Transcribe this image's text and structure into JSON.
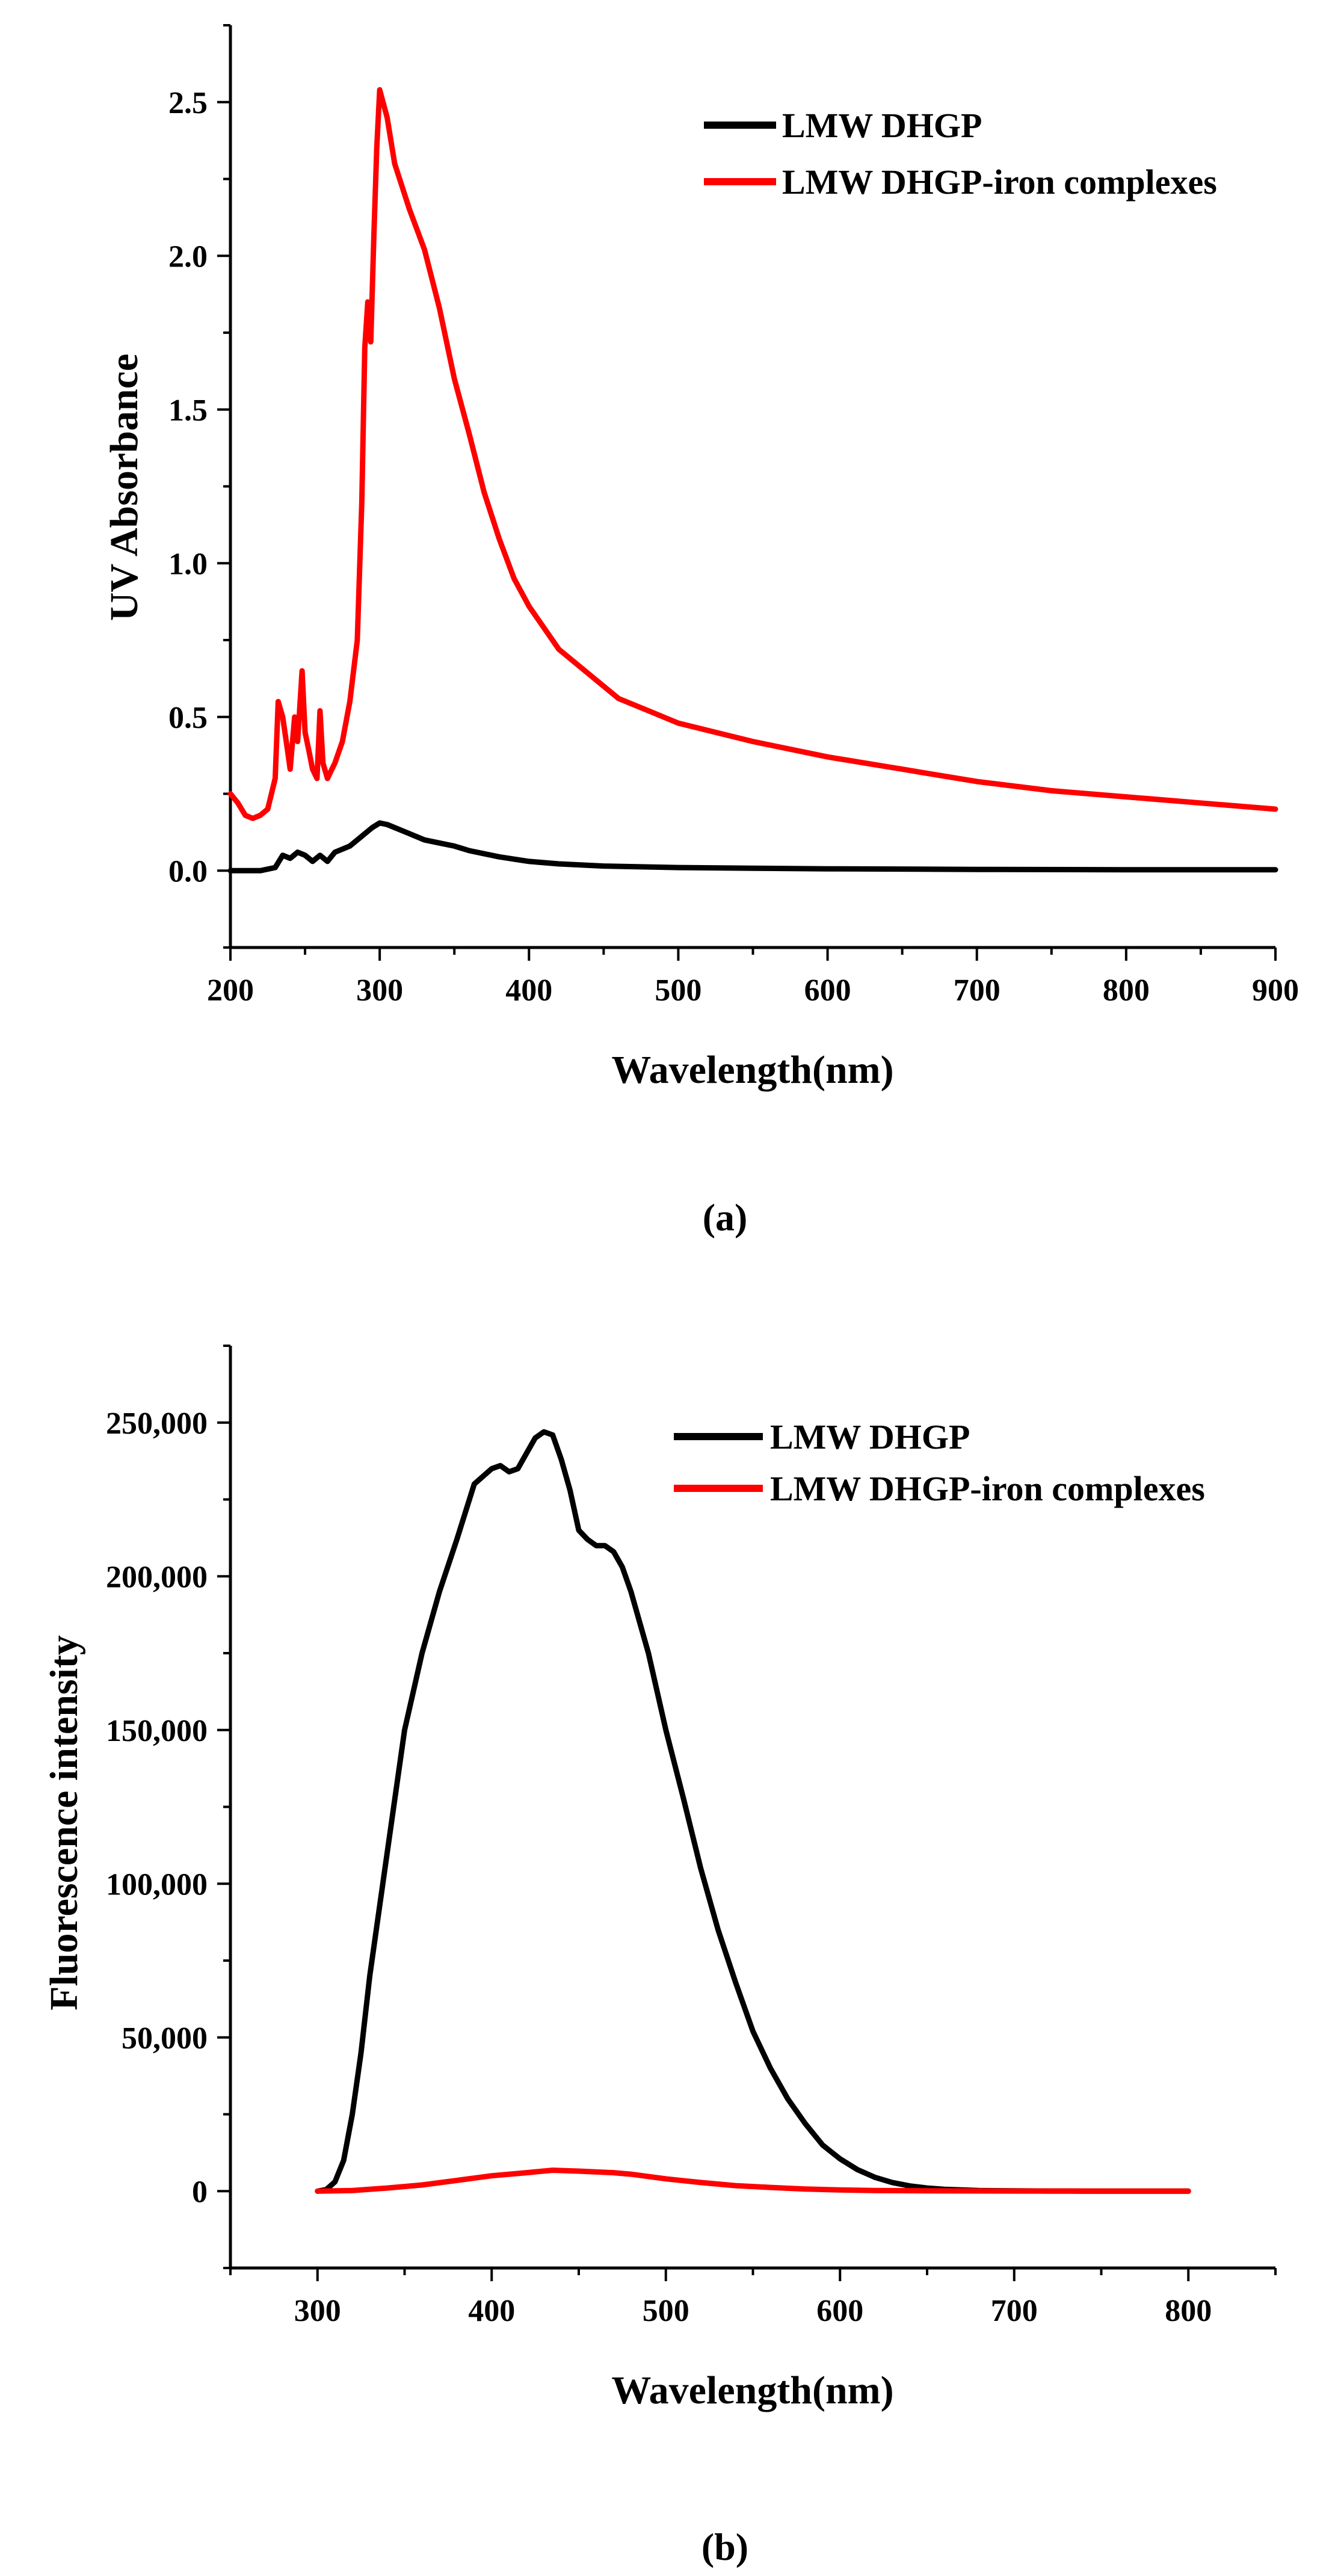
{
  "chart_data": [
    {
      "panel_label": "(a)",
      "type": "line",
      "xlabel": "Wavelength(nm)",
      "ylabel": "UV Absorbance",
      "xlim": [
        200,
        900
      ],
      "ylim": [
        -0.25,
        2.75
      ],
      "xticks": [
        200,
        300,
        400,
        500,
        600,
        700,
        800,
        900
      ],
      "xtick_labels": [
        "200",
        "300",
        "400",
        "500",
        "600",
        "700",
        "800",
        "900"
      ],
      "yticks": [
        0.0,
        0.5,
        1.0,
        1.5,
        2.0,
        2.5
      ],
      "ytick_labels": [
        "0.0",
        "0.5",
        "1.0",
        "1.5",
        "2.0",
        "2.5"
      ],
      "legend_position": "top-right",
      "series": [
        {
          "name": "LMW DHGP",
          "color": "#000000",
          "x": [
            200,
            210,
            220,
            230,
            235,
            240,
            245,
            250,
            255,
            260,
            265,
            270,
            275,
            280,
            285,
            290,
            295,
            300,
            305,
            310,
            320,
            330,
            340,
            350,
            360,
            380,
            400,
            420,
            450,
            500,
            550,
            600,
            700,
            800,
            900
          ],
          "y": [
            0.0,
            0.0,
            0.0,
            0.01,
            0.05,
            0.04,
            0.06,
            0.05,
            0.03,
            0.05,
            0.03,
            0.06,
            0.07,
            0.08,
            0.1,
            0.12,
            0.14,
            0.155,
            0.15,
            0.14,
            0.12,
            0.1,
            0.09,
            0.08,
            0.065,
            0.045,
            0.03,
            0.022,
            0.015,
            0.01,
            0.008,
            0.006,
            0.004,
            0.003,
            0.003
          ]
        },
        {
          "name": "LMW DHGP-iron complexes",
          "color": "#ff0000",
          "x": [
            200,
            205,
            210,
            215,
            220,
            225,
            230,
            232,
            235,
            238,
            240,
            243,
            245,
            248,
            250,
            253,
            255,
            258,
            260,
            262,
            265,
            268,
            270,
            275,
            280,
            285,
            288,
            290,
            292,
            294,
            296,
            298,
            300,
            305,
            310,
            320,
            330,
            340,
            350,
            360,
            370,
            380,
            390,
            400,
            420,
            440,
            460,
            480,
            500,
            550,
            600,
            650,
            700,
            750,
            800,
            850,
            900
          ],
          "y": [
            0.25,
            0.22,
            0.18,
            0.17,
            0.18,
            0.2,
            0.3,
            0.55,
            0.5,
            0.4,
            0.33,
            0.5,
            0.42,
            0.65,
            0.45,
            0.38,
            0.33,
            0.3,
            0.52,
            0.35,
            0.3,
            0.33,
            0.35,
            0.42,
            0.55,
            0.75,
            1.2,
            1.7,
            1.85,
            1.72,
            2.05,
            2.35,
            2.54,
            2.45,
            2.3,
            2.15,
            2.02,
            1.83,
            1.6,
            1.42,
            1.23,
            1.08,
            0.95,
            0.86,
            0.72,
            0.64,
            0.56,
            0.52,
            0.48,
            0.42,
            0.37,
            0.33,
            0.29,
            0.26,
            0.24,
            0.22,
            0.2
          ]
        }
      ]
    },
    {
      "panel_label": "(b)",
      "type": "line",
      "xlabel": "Wavelength(nm)",
      "ylabel": "Fluorescence intensity",
      "xlim": [
        250,
        850
      ],
      "ylim": [
        -25000,
        275000
      ],
      "xticks": [
        300,
        400,
        500,
        600,
        700,
        800
      ],
      "xtick_labels": [
        "300",
        "400",
        "500",
        "600",
        "700",
        "800"
      ],
      "yticks": [
        0,
        50000,
        100000,
        150000,
        200000,
        250000
      ],
      "ytick_labels": [
        "0",
        "50,000",
        "100,000",
        "150,000",
        "200,000",
        "250,000"
      ],
      "legend_position": "top-right",
      "series": [
        {
          "name": "LMW DHGP",
          "color": "#000000",
          "x": [
            300,
            305,
            310,
            315,
            320,
            325,
            330,
            340,
            350,
            360,
            370,
            380,
            390,
            400,
            405,
            410,
            415,
            420,
            425,
            430,
            435,
            440,
            445,
            450,
            455,
            460,
            465,
            470,
            475,
            480,
            490,
            500,
            510,
            520,
            530,
            540,
            550,
            560,
            570,
            580,
            590,
            600,
            610,
            620,
            630,
            640,
            650,
            660,
            680,
            700,
            720,
            740,
            760,
            780,
            800
          ],
          "y": [
            0,
            500,
            3000,
            10000,
            25000,
            45000,
            70000,
            110000,
            150000,
            175000,
            195000,
            212000,
            230000,
            235000,
            236000,
            234000,
            235000,
            240000,
            245000,
            247000,
            246000,
            238000,
            228000,
            215000,
            212000,
            210000,
            210000,
            208000,
            203000,
            195000,
            175000,
            150000,
            128000,
            105000,
            85000,
            68000,
            52000,
            40000,
            30000,
            22000,
            15000,
            10500,
            7000,
            4500,
            2800,
            1700,
            1000,
            600,
            200,
            80,
            30,
            10,
            5,
            2,
            0
          ]
        },
        {
          "name": "LMW DHGP-iron complexes",
          "color": "#ff0000",
          "x": [
            300,
            320,
            340,
            360,
            380,
            400,
            420,
            435,
            450,
            470,
            480,
            500,
            520,
            540,
            560,
            580,
            600,
            620,
            650,
            700,
            750,
            800
          ],
          "y": [
            0,
            200,
            1000,
            2000,
            3500,
            5000,
            6000,
            6800,
            6500,
            6000,
            5500,
            4000,
            2800,
            1800,
            1200,
            700,
            400,
            200,
            100,
            30,
            10,
            0
          ]
        }
      ]
    }
  ]
}
